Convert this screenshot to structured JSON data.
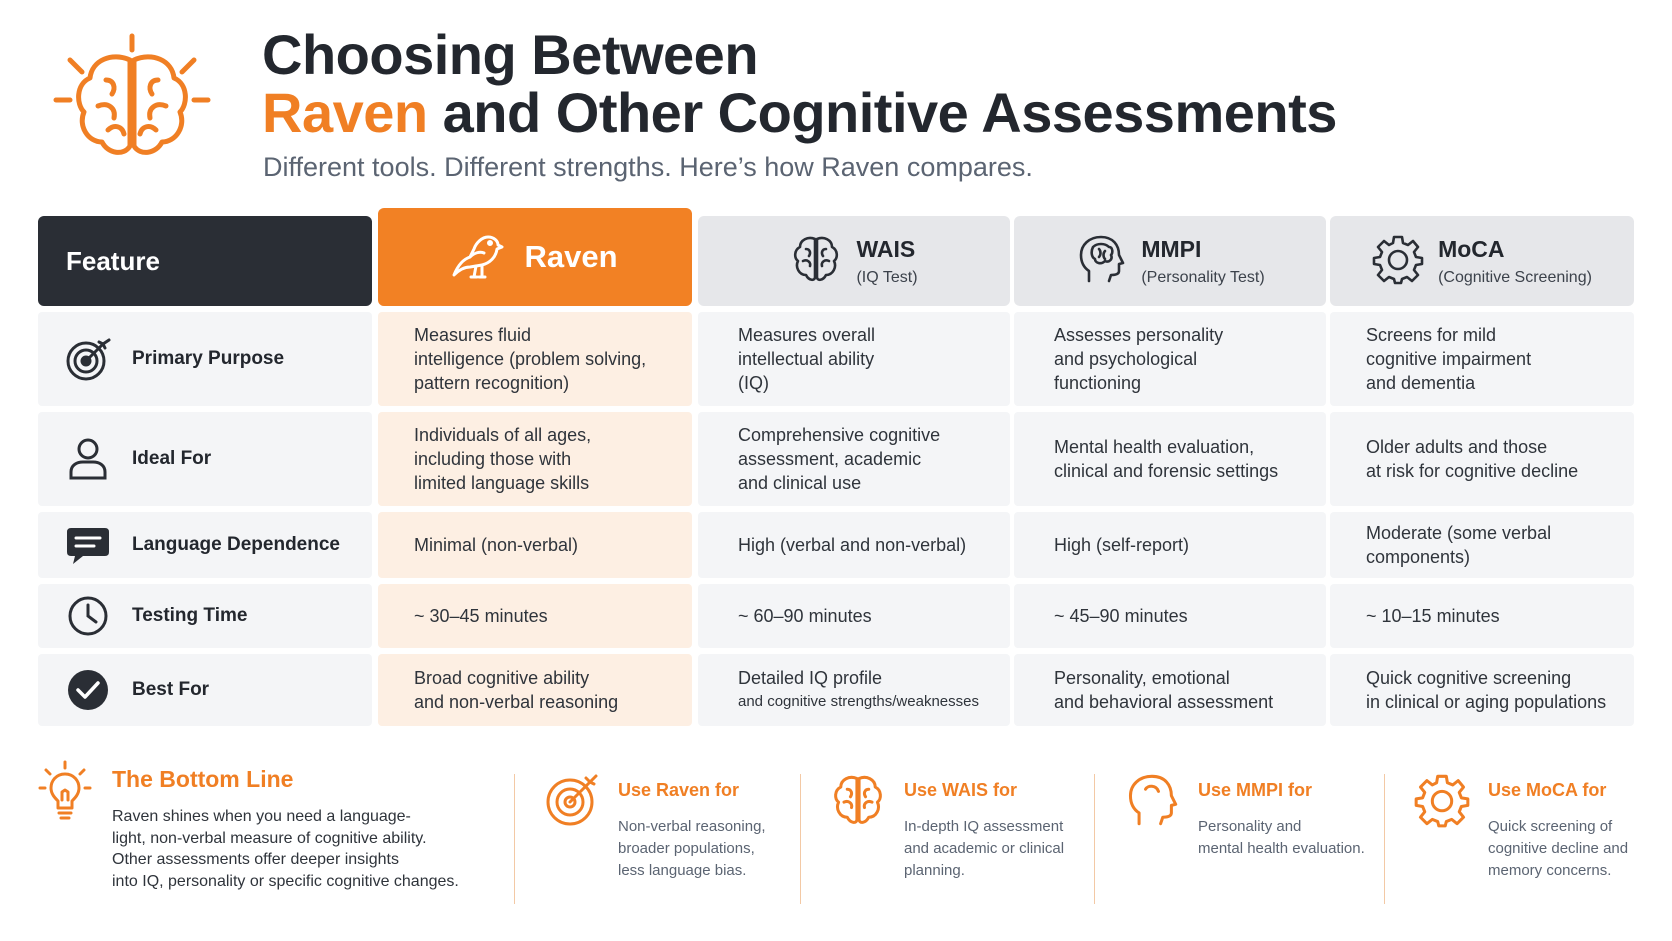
{
  "header": {
    "title_line1": "Choosing Between",
    "title_accent": "Raven",
    "title_rest": " and Other Cognitive  Assessments",
    "subtitle": "Different tools. Different strengths. Here’s how Raven compares."
  },
  "table": {
    "feature_header": "Feature",
    "columns": [
      {
        "name": "Raven",
        "sub": "",
        "icon": "bird-icon"
      },
      {
        "name": "WAIS",
        "sub": "(IQ Test)",
        "icon": "brain-icon"
      },
      {
        "name": "MMPI",
        "sub": "(Personality Test)",
        "icon": "head-brain-icon"
      },
      {
        "name": "MoCA",
        "sub": "(Cognitive Screening)",
        "icon": "gear-icon"
      }
    ],
    "rows": [
      {
        "label": "Primary Purpose",
        "icon": "target-icon",
        "raven": [
          "Measures fluid",
          "intelligence (problem solving,",
          "pattern recognition)"
        ],
        "wais": [
          "Measures overall",
          "intellectual ability",
          "(IQ)"
        ],
        "mmpi": [
          "Assesses personality",
          "and psychological",
          "functioning"
        ],
        "moca": [
          "Screens for mild",
          "cognitive impairment",
          "and dementia"
        ]
      },
      {
        "label": "Ideal For",
        "icon": "person-icon",
        "raven": [
          "Individuals of all ages,",
          "including those with",
          "limited language skills"
        ],
        "wais": [
          "Comprehensive cognitive",
          "assessment, academic",
          "and clinical use"
        ],
        "mmpi": [
          "Mental health evaluation,",
          "clinical and forensic settings"
        ],
        "moca": [
          "Older adults and those",
          "at risk for cognitive decline"
        ]
      },
      {
        "label": "Language Dependence",
        "icon": "chat-bubble-icon",
        "raven": [
          "Minimal (non-verbal)"
        ],
        "wais": [
          "High (verbal and non-verbal)"
        ],
        "mmpi": [
          "High (self-report)"
        ],
        "moca": [
          "Moderate (some verbal",
          "components)"
        ]
      },
      {
        "label": "Testing Time",
        "icon": "clock-icon",
        "raven": [
          "~ 30–45 minutes"
        ],
        "wais": [
          "~ 60–90 minutes"
        ],
        "mmpi": [
          "~ 45–90 minutes"
        ],
        "moca": [
          "~ 10–15 minutes"
        ]
      },
      {
        "label": "Best For",
        "icon": "check-circle-icon",
        "raven": [
          "Broad cognitive ability",
          "and non-verbal reasoning"
        ],
        "wais": [
          "Detailed IQ profile",
          "and cognitive strengths/weaknesses"
        ],
        "mmpi": [
          "Personality, emotional",
          "and behavioral assessment"
        ],
        "moca": [
          "Quick cognitive screening",
          "in clinical or aging populations"
        ]
      }
    ]
  },
  "bottom": {
    "title": "The Bottom Line",
    "icon": "lightbulb-icon",
    "text": [
      "Raven shines when you need a language-",
      "light, non-verbal measure of cognitive ability.",
      "Other assessments offer deeper insights",
      "into IQ, personality or specific cognitive changes."
    ],
    "uses": [
      {
        "title": "Use Raven for",
        "icon": "target-icon",
        "desc": [
          "Non-verbal reasoning,",
          "broader populations,",
          "less language bias."
        ]
      },
      {
        "title": "Use WAIS for",
        "icon": "brain-icon",
        "desc": [
          "In-depth IQ assessment",
          "and academic or clinical",
          "planning."
        ]
      },
      {
        "title": "Use MMPI for",
        "icon": "head-icon",
        "desc": [
          "Personality and",
          "mental health evaluation."
        ]
      },
      {
        "title": "Use MoCA for",
        "icon": "gear-icon",
        "desc": [
          "Quick screening of",
          "cognitive decline and",
          "memory concerns."
        ]
      }
    ]
  },
  "colors": {
    "accent": "#f07f24",
    "dark": "#2a2e35",
    "raven_tint": "#fdefe3",
    "cell_bg": "#f4f5f7",
    "header_grey": "#e6e7ea"
  }
}
